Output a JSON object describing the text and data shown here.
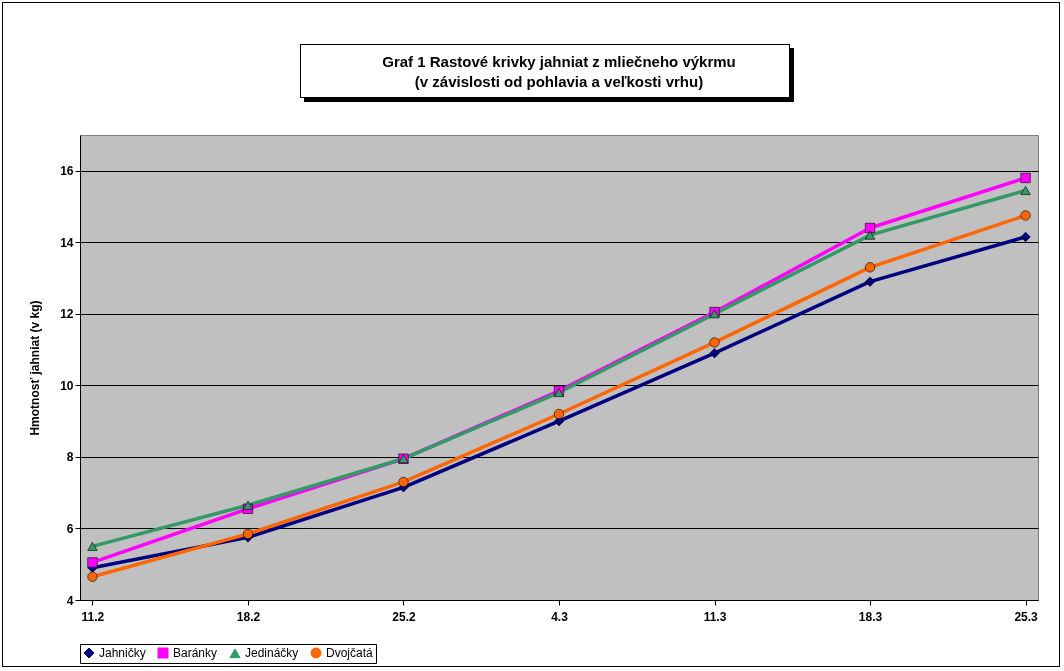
{
  "chart_data": {
    "type": "line",
    "title": "Graf 1  Rastové krivky jahniat z mliečneho výkrmu\n(v závislosti od pohlavia a veľkosti vrhu)",
    "ylabel": "Hmotnosť jahniat (v kg)",
    "categories": [
      "11.2",
      "18.2",
      "25.2",
      "4.3",
      "11.3",
      "18.3",
      "25.3"
    ],
    "series": [
      {
        "name": "Jahničky",
        "color": "#000080",
        "marker": "diamond",
        "values": [
          4.9,
          5.75,
          7.15,
          9.0,
          10.9,
          12.9,
          14.15
        ]
      },
      {
        "name": "Baránky",
        "color": "#ff00ff",
        "marker": "square",
        "values": [
          5.05,
          6.55,
          7.95,
          9.85,
          12.05,
          14.4,
          15.8
        ]
      },
      {
        "name": "Jedináčky",
        "color": "#339966",
        "marker": "triangle",
        "values": [
          5.5,
          6.65,
          7.95,
          9.8,
          12.0,
          14.2,
          15.45
        ]
      },
      {
        "name": "Dvojčatá",
        "color": "#ff6600",
        "marker": "circle",
        "values": [
          4.65,
          5.85,
          7.3,
          9.2,
          11.2,
          13.3,
          14.75
        ]
      }
    ],
    "ylim": [
      4,
      17
    ],
    "yticks": [
      4,
      6,
      8,
      10,
      12,
      14,
      16
    ],
    "grid": "y",
    "legend": "bottom",
    "line_style": "solid"
  }
}
